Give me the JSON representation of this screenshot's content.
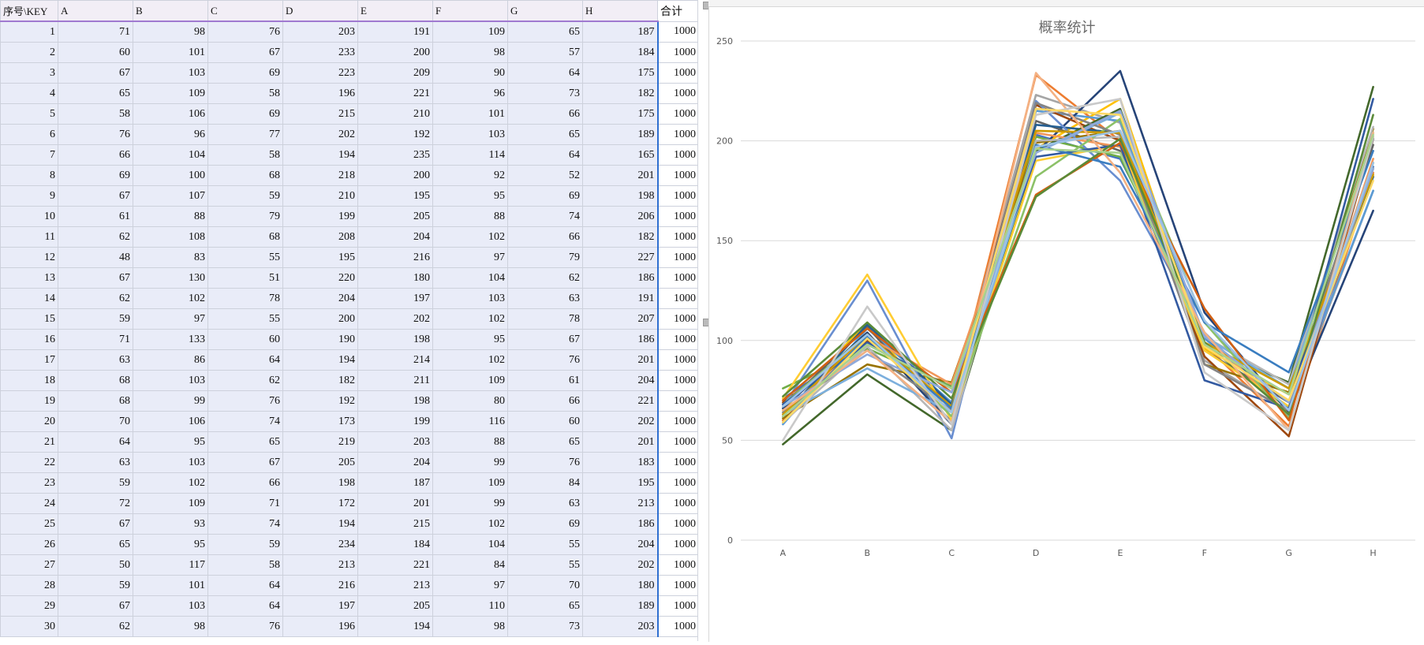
{
  "sheet": {
    "headers": [
      "序号\\KEY",
      "A",
      "B",
      "C",
      "D",
      "E",
      "F",
      "G",
      "H"
    ],
    "total_header": "合计",
    "rows": [
      [
        1,
        71,
        98,
        76,
        203,
        191,
        109,
        65,
        187,
        1000
      ],
      [
        2,
        60,
        101,
        67,
        233,
        200,
        98,
        57,
        184,
        1000
      ],
      [
        3,
        67,
        103,
        69,
        223,
        209,
        90,
        64,
        175,
        1000
      ],
      [
        4,
        65,
        109,
        58,
        196,
        221,
        96,
        73,
        182,
        1000
      ],
      [
        5,
        58,
        106,
        69,
        215,
        210,
        101,
        66,
        175,
        1000
      ],
      [
        6,
        76,
        96,
        77,
        202,
        192,
        103,
        65,
        189,
        1000
      ],
      [
        7,
        66,
        104,
        58,
        194,
        235,
        114,
        64,
        165,
        1000
      ],
      [
        8,
        69,
        100,
        68,
        218,
        200,
        92,
        52,
        201,
        1000
      ],
      [
        9,
        67,
        107,
        59,
        210,
        195,
        95,
        69,
        198,
        1000
      ],
      [
        10,
        61,
        88,
        79,
        199,
        205,
        88,
        74,
        206,
        1000
      ],
      [
        11,
        62,
        108,
        68,
        208,
        204,
        102,
        66,
        182,
        1000
      ],
      [
        12,
        48,
        83,
        55,
        195,
        216,
        97,
        79,
        227,
        1000
      ],
      [
        13,
        67,
        130,
        51,
        220,
        180,
        104,
        62,
        186,
        1000
      ],
      [
        14,
        62,
        102,
        78,
        204,
        197,
        103,
        63,
        191,
        1000
      ],
      [
        15,
        59,
        97,
        55,
        200,
        202,
        102,
        78,
        207,
        1000
      ],
      [
        16,
        71,
        133,
        60,
        190,
        198,
        95,
        67,
        186,
        1000
      ],
      [
        17,
        63,
        86,
        64,
        194,
        214,
        102,
        76,
        201,
        1000
      ],
      [
        18,
        68,
        103,
        62,
        182,
        211,
        109,
        61,
        204,
        1000
      ],
      [
        19,
        68,
        99,
        76,
        192,
        198,
        80,
        66,
        221,
        1000
      ],
      [
        20,
        70,
        106,
        74,
        173,
        199,
        116,
        60,
        202,
        1000
      ],
      [
        21,
        64,
        95,
        65,
        219,
        203,
        88,
        65,
        201,
        1000
      ],
      [
        22,
        63,
        103,
        67,
        205,
        204,
        99,
        76,
        183,
        1000
      ],
      [
        23,
        59,
        102,
        66,
        198,
        187,
        109,
        84,
        195,
        1000
      ],
      [
        24,
        72,
        109,
        71,
        172,
        201,
        99,
        63,
        213,
        1000
      ],
      [
        25,
        67,
        93,
        74,
        194,
        215,
        102,
        69,
        186,
        1000
      ],
      [
        26,
        65,
        95,
        59,
        234,
        184,
        104,
        55,
        204,
        1000
      ],
      [
        27,
        50,
        117,
        58,
        213,
        221,
        84,
        55,
        202,
        1000
      ],
      [
        28,
        59,
        101,
        64,
        216,
        213,
        97,
        70,
        180,
        1000
      ],
      [
        29,
        67,
        103,
        64,
        197,
        205,
        110,
        65,
        189,
        1000
      ],
      [
        30,
        62,
        98,
        76,
        196,
        194,
        98,
        73,
        203,
        1000
      ]
    ]
  },
  "chart_data": {
    "type": "line",
    "title": "概率统计",
    "categories": [
      "A",
      "B",
      "C",
      "D",
      "E",
      "F",
      "G",
      "H"
    ],
    "ylim": [
      0,
      250
    ],
    "yticks": [
      0,
      50,
      100,
      150,
      200,
      250
    ],
    "grid": true,
    "legend": "none",
    "colors": [
      "#4472c4",
      "#ed7d31",
      "#a5a5a5",
      "#ffc000",
      "#5b9bd5",
      "#70ad47",
      "#264478",
      "#9e480e",
      "#636363",
      "#997300",
      "#255e91",
      "#43682b",
      "#698ed0",
      "#f1975a",
      "#b7b7b7",
      "#ffcd33",
      "#7cafdd",
      "#8cc168",
      "#335aa1",
      "#d26012",
      "#848484",
      "#cc9a00",
      "#3a7dc0",
      "#5a8a38",
      "#8fa9db",
      "#f4b183",
      "#c9c9c9",
      "#ffd966",
      "#9dc3e6",
      "#a9d18e"
    ],
    "series_source": "sheet.rows"
  }
}
